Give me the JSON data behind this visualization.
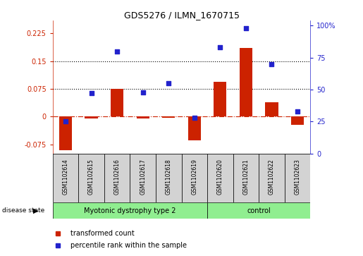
{
  "title": "GDS5276 / ILMN_1670715",
  "samples": [
    "GSM1102614",
    "GSM1102615",
    "GSM1102616",
    "GSM1102617",
    "GSM1102618",
    "GSM1102619",
    "GSM1102620",
    "GSM1102621",
    "GSM1102622",
    "GSM1102623"
  ],
  "transformed_count": [
    -0.09,
    -0.005,
    0.075,
    -0.005,
    -0.003,
    -0.065,
    0.095,
    0.185,
    0.038,
    -0.023
  ],
  "percentile_rank": [
    25,
    47,
    80,
    48,
    55,
    28,
    83,
    98,
    70,
    33
  ],
  "left_ylim": [
    -0.1,
    0.26
  ],
  "right_ylim": [
    0,
    104
  ],
  "left_yticks": [
    -0.075,
    0,
    0.075,
    0.15,
    0.225
  ],
  "left_yticklabels": [
    "-0.075",
    "0",
    "0.075",
    "0.15",
    "0.225"
  ],
  "right_yticks": [
    0,
    25,
    50,
    75,
    100
  ],
  "right_yticklabels": [
    "0",
    "25",
    "50",
    "75",
    "100%"
  ],
  "hlines": [
    0.075,
    0.15
  ],
  "disease_groups": [
    {
      "label": "Myotonic dystrophy type 2",
      "n": 6,
      "color": "#90EE90"
    },
    {
      "label": "control",
      "n": 4,
      "color": "#90EE90"
    }
  ],
  "bar_color": "#CC2200",
  "dot_color": "#2222CC",
  "zero_line_color": "#CC2200",
  "plot_bg_color": "#FFFFFF",
  "disease_state_label": "disease state",
  "legend_items": [
    {
      "label": "transformed count",
      "color": "#CC2200"
    },
    {
      "label": "percentile rank within the sample",
      "color": "#2222CC"
    }
  ]
}
